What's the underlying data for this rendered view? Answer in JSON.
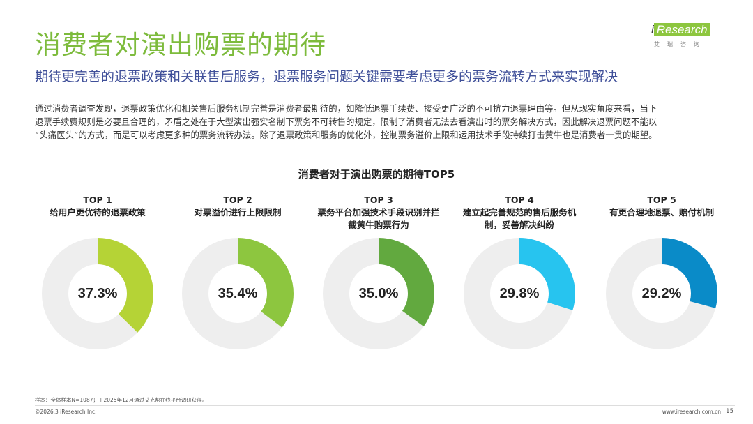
{
  "header": {
    "title": "消费者对演出购票的期待",
    "subtitle": "期待更完善的退票政策和关联售后服务，退票服务问题关键需要考虑更多的票务流转方式来实现解决"
  },
  "logo": {
    "prefix": "i",
    "highlight": "Research",
    "sub": "艾瑞咨询"
  },
  "intro": [
    "通过消费者调查发现，退票政策优化和相关售后服务机制完善是消费者最期待的，如降低退票手续费、接受更广泛的不可抗力退票理由等。但从现实角度来看，当下",
    "退票手续费规则是必要且合理的，矛盾之处在于大型演出强实名制下票务不可转售的规定，限制了消费者无法去看演出时的票务解决方式，因此解决退票问题不能以",
    "“头痛医头”的方式，而是可以考虑更多种的票务流转办法。除了退票政策和服务的优化外，控制票务溢价上限和运用技术手段持续打击黄牛也是消费者一贯的期望。"
  ],
  "chart_data": {
    "type": "pie",
    "title": "消费者对于演出购票的期待TOP5",
    "unit": "%",
    "track_color": "#EEEEEE",
    "items": [
      {
        "rank": "TOP 1",
        "label": "给用户更优待的退票政策",
        "value": 37.3,
        "display": "37.3%",
        "color": "#B5D336"
      },
      {
        "rank": "TOP 2",
        "label": "对票溢价进行上限限制",
        "value": 35.4,
        "display": "35.4%",
        "color": "#8DC63F"
      },
      {
        "rank": "TOP 3",
        "label": "票务平台加强技术手段识别并拦截黄牛购票行为",
        "value": 35.0,
        "display": "35.0%",
        "color": "#62A93F"
      },
      {
        "rank": "TOP 4",
        "label": "建立起完善规范的售后服务机制，妥善解决纠纷",
        "value": 29.8,
        "display": "29.8%",
        "color": "#27C4EF"
      },
      {
        "rank": "TOP 5",
        "label": "有更合理地退票、赔付机制",
        "value": 29.2,
        "display": "29.2%",
        "color": "#0A8BC8"
      }
    ]
  },
  "footer": {
    "note": "样本：全体样本N=1087；于2025年12月通过艾克帮在线平台调研获得。",
    "copyright": "©2026.3 iResearch Inc.",
    "website": "www.iresearch.com.cn",
    "page": "15"
  }
}
